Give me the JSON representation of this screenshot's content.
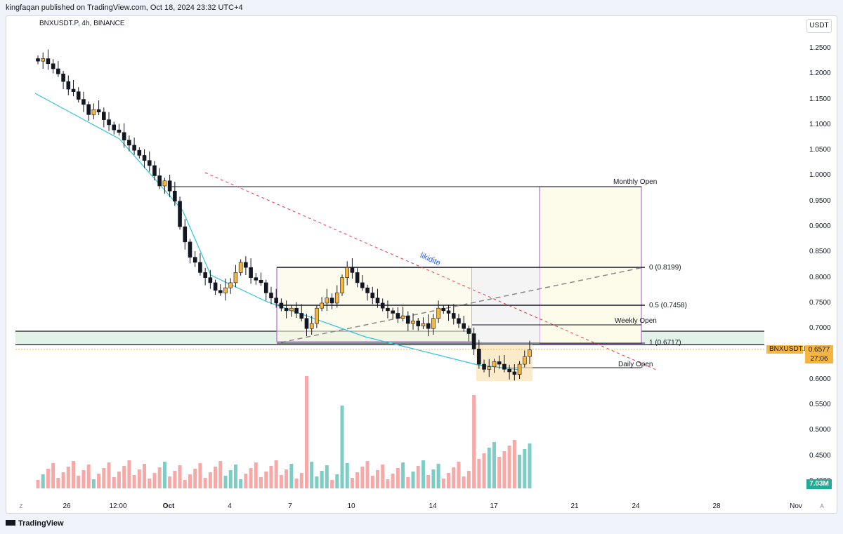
{
  "header": {
    "publish_line": "kingfaqan published on TradingView.com, Oct 18, 2024 23:32 UTC+4"
  },
  "symbol_line": "BNXUSDT.P, 4h, BINANCE",
  "currency_button": "USDT",
  "price_tag": {
    "symbol": "BNXUSDT.P",
    "price": "0.6577",
    "timer": "27:06"
  },
  "volume_tag": "7.03M",
  "footer": {
    "logo_text": "TradingView"
  },
  "scale_buttons": {
    "left": "Z",
    "right": "A"
  },
  "annotations": {
    "monthly_open": "Monthly Open",
    "weekly_open": "Weekly Open",
    "daily_open": "Daily Open",
    "fib_0": "0 (0.8199)",
    "fib_05": "0.5 (0.7458)",
    "fib_1": "1 (0.6717)",
    "likidite": "likidite"
  },
  "colors": {
    "up": "#f5b53f",
    "down": "#131722",
    "vol_up": "#7ecdc4",
    "vol_down": "#f7a9a7",
    "trend": "#2ec4d6",
    "dashed_red": "#f23645",
    "zone_green": "#e6f4ea"
  },
  "chart_data": {
    "type": "candlestick",
    "title": "BNXUSDT.P, 4h, BINANCE",
    "y_ticks": [
      "1.2500",
      "1.2000",
      "1.1500",
      "1.1000",
      "1.0500",
      "1.0000",
      "0.9500",
      "0.9000",
      "0.8500",
      "0.8000",
      "0.7500",
      "0.7000",
      "0.6500",
      "0.6000",
      "0.5500",
      "0.5000",
      "0.4500",
      "0.4000"
    ],
    "ylim": [
      0.38,
      1.27
    ],
    "x_ticks": [
      "26",
      "12:00",
      "Oct",
      "4",
      "7",
      "10",
      "14",
      "17",
      "21",
      "24",
      "28",
      "Nov"
    ],
    "levels": {
      "monthly_open": 0.978,
      "weekly_open": 0.707,
      "daily_open": 0.625,
      "fib_0": 0.8199,
      "fib_05": 0.7458,
      "fib_1": 0.6717,
      "last_price": 0.6577
    },
    "last_price": 0.6577,
    "closes": [
      1.225,
      1.23,
      1.22,
      1.21,
      1.2,
      1.185,
      1.17,
      1.165,
      1.15,
      1.14,
      1.12,
      1.13,
      1.125,
      1.11,
      1.1,
      1.09,
      1.085,
      1.07,
      1.06,
      1.05,
      1.04,
      1.03,
      1.02,
      1.0,
      0.98,
      0.99,
      0.97,
      0.95,
      0.9,
      0.87,
      0.84,
      0.83,
      0.81,
      0.8,
      0.79,
      0.775,
      0.77,
      0.78,
      0.79,
      0.81,
      0.83,
      0.82,
      0.8,
      0.795,
      0.79,
      0.77,
      0.76,
      0.75,
      0.74,
      0.735,
      0.74,
      0.73,
      0.72,
      0.7,
      0.71,
      0.74,
      0.75,
      0.76,
      0.75,
      0.77,
      0.8,
      0.82,
      0.81,
      0.79,
      0.78,
      0.77,
      0.76,
      0.75,
      0.74,
      0.735,
      0.73,
      0.72,
      0.725,
      0.71,
      0.715,
      0.705,
      0.71,
      0.7,
      0.72,
      0.74,
      0.735,
      0.73,
      0.72,
      0.71,
      0.7,
      0.69,
      0.66,
      0.63,
      0.62,
      0.625,
      0.635,
      0.63,
      0.62,
      0.615,
      0.61,
      0.63,
      0.645,
      0.658
    ]
  }
}
